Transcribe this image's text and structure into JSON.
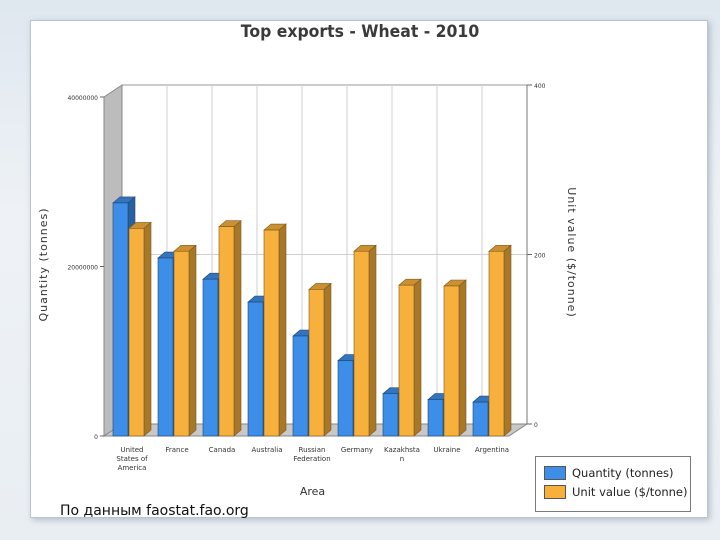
{
  "footnote": "По данным faostat.fao.org",
  "chart_data": {
    "type": "bar",
    "title": "Top exports - Wheat - 2010",
    "xlabel": "Area",
    "ylabel": "Quantity (tonnes)",
    "y2label": "Unit value ($/tonne)",
    "categories": [
      [
        "United",
        "States of",
        "America"
      ],
      [
        "France"
      ],
      [
        "Canada"
      ],
      [
        "Australia"
      ],
      [
        "Russian",
        "Federation"
      ],
      [
        "Germany"
      ],
      [
        "Kazakhsta",
        "n"
      ],
      [
        "Ukraine"
      ],
      [
        "Argentina"
      ]
    ],
    "ylim": [
      0,
      40000000
    ],
    "y2lim": [
      0,
      400
    ],
    "yticks": [
      "0",
      "20000000",
      "40000000"
    ],
    "y2ticks": [
      "0",
      "200",
      "400"
    ],
    "grid": true,
    "legend_position": "bottom-right",
    "series": [
      {
        "name": "Quantity (tonnes)",
        "axis": "left",
        "color": "#3d8ee8",
        "values": [
          27500000,
          21000000,
          18500000,
          15800000,
          11800000,
          8900000,
          5000000,
          4300000,
          4000000
        ]
      },
      {
        "name": "Unit value ($/tonne)",
        "axis": "right",
        "color": "#f7b03c",
        "values": [
          245,
          218,
          247,
          243,
          173,
          218,
          178,
          177,
          218
        ]
      }
    ]
  }
}
